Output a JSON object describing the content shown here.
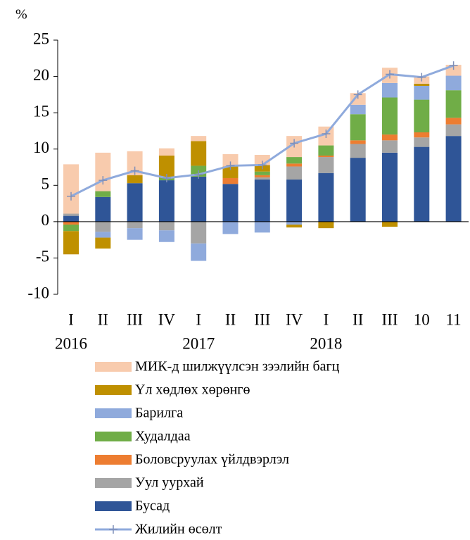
{
  "chart_data": {
    "type": "bar",
    "y_label": "%",
    "categories": [
      "I",
      "II",
      "III",
      "IV",
      "I",
      "II",
      "III",
      "IV",
      "I",
      "II",
      "III",
      "10",
      "11"
    ],
    "groups": [
      {
        "label": "2016",
        "start": 0
      },
      {
        "label": "2017",
        "start": 4
      },
      {
        "label": "2018",
        "start": 8
      }
    ],
    "stacked": true,
    "ylim": [
      -10,
      25
    ],
    "yticks": [
      -10,
      -5,
      0,
      5,
      10,
      15,
      20,
      25
    ],
    "grid": false,
    "series": [
      {
        "name": "МИК-д шилжүүлсэн зээлийн багц",
        "color": "#f8cbad",
        "values": [
          6.8,
          5.3,
          3.3,
          1.0,
          0.7,
          1.7,
          1.4,
          2.9,
          2.6,
          1.6,
          2.1,
          1.0,
          1.5
        ]
      },
      {
        "name": "Үл хөдлөх хөрөнгө",
        "color": "#bf9000",
        "values": [
          -3.2,
          -1.5,
          1.1,
          3.1,
          3.4,
          1.6,
          0.9,
          -0.4,
          -0.9,
          0,
          -0.7,
          0.3,
          0
        ]
      },
      {
        "name": "Барилга",
        "color": "#8faadc",
        "values": [
          0,
          -0.8,
          -1.6,
          -1.6,
          -2.4,
          -1.7,
          -1.5,
          -0.4,
          0,
          1.3,
          2.0,
          1.9,
          2.0
        ]
      },
      {
        "name": "Худалдаа",
        "color": "#70ad47",
        "values": [
          -0.9,
          0.8,
          0,
          0.3,
          1.5,
          0,
          0.5,
          0.9,
          1.4,
          3.6,
          5.1,
          4.5,
          3.8
        ]
      },
      {
        "name": "Боловсруулах үйлдвэрлэл",
        "color": "#ed7d31",
        "values": [
          -0.4,
          0,
          0,
          0,
          0,
          0.8,
          0.3,
          0.4,
          0.2,
          0.5,
          0.8,
          0.7,
          0.9
        ]
      },
      {
        "name": "Уул уурхай",
        "color": "#a5a5a5",
        "values": [
          0.3,
          -1.4,
          -0.9,
          -1.2,
          -3.0,
          0,
          0.3,
          1.8,
          2.2,
          1.9,
          1.7,
          1.3,
          1.6
        ]
      },
      {
        "name": "Бусад",
        "color": "#2f5597",
        "values": [
          0.8,
          3.4,
          5.3,
          5.7,
          6.2,
          5.2,
          5.8,
          5.8,
          6.7,
          8.8,
          9.5,
          10.3,
          11.8
        ]
      },
      {
        "name": "Жилийн өсөлт",
        "type": "line",
        "color": "#8faadc",
        "values": [
          3.5,
          5.7,
          7.0,
          6.0,
          6.5,
          7.7,
          7.8,
          10.8,
          12.1,
          17.5,
          20.3,
          19.9,
          21.5
        ]
      }
    ]
  }
}
